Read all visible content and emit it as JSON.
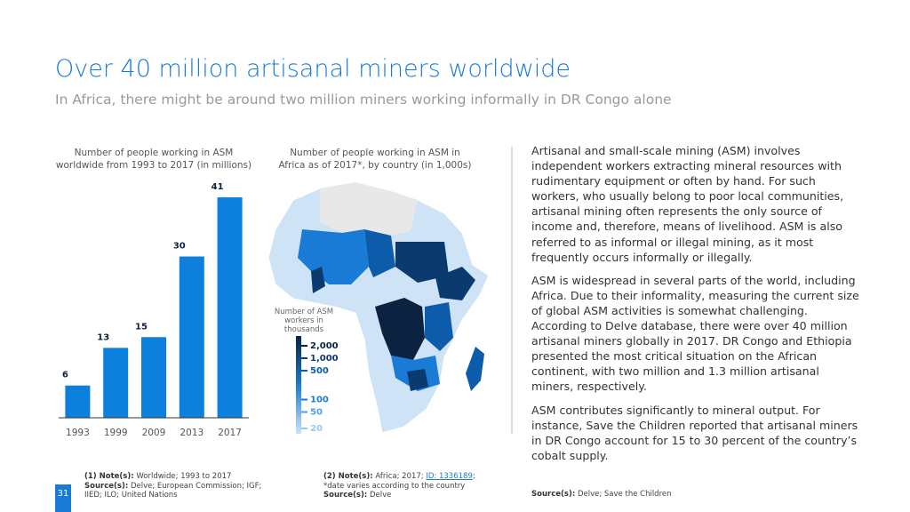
{
  "header": {
    "title": "Over 40 million artisanal miners worldwide",
    "subtitle": "In Africa, there might be around two million miners working informally in DR Congo alone"
  },
  "chart_data": {
    "type": "bar",
    "title": "Number of people working in ASM worldwide from 1993 to 2017 (in millions)",
    "categories": [
      "1993",
      "1999",
      "2009",
      "2013",
      "2017"
    ],
    "values": [
      6,
      13,
      15,
      30,
      41
    ],
    "color": "#0d7fdc"
  },
  "map": {
    "title": "Number of people working in ASM in Africa as of 2017*, by country (in 1,000s)",
    "legend_title": "Number of ASM workers in thousands",
    "legend_ticks": [
      {
        "value": 2000,
        "label": "2,000"
      },
      {
        "value": 1000,
        "label": "1,000"
      },
      500,
      100,
      50,
      20
    ]
  },
  "text": {
    "paragraphs": [
      "Artisanal and small-scale mining (ASM) involves independent workers extracting mineral resources with rudimentary equipment or often by hand. For such workers, who usually belong to poor local communities, artisanal mining often represents the only source of income and, therefore, means of livelihood. ASM is also referred to as informal or illegal mining, as it most frequently occurs informally or illegally.",
      "ASM is widespread in several parts of the world, including Africa. Due to their informality, measuring the current size of global ASM activities is somewhat challenging. According to Delve database, there were over 40 million artisanal miners globally in 2017. DR Congo and Ethiopia presented the most critical situation on the African continent, with two million and 1.3 million artisanal miners, respectively.",
      "ASM contributes significantly to mineral output. For instance, Save the Children reported that artisanal miners in DR Congo account for 15 to 30 percent of the country’s cobalt supply."
    ]
  },
  "footnotes": [
    {
      "note_label": "(1) Note(s):",
      "note": "Worldwide; 1993 to 2017",
      "source_label": "Source(s):",
      "source": "Delve; European Commission; IGF; IIED; ILO; United Nations"
    },
    {
      "note_label": "(2) Note(s):",
      "note": "Africa; 2017;",
      "link": "ID: 1336189",
      "note_end": "; *date varies according to the country",
      "source_label": "Source(s):",
      "source": "Delve"
    },
    {
      "source_label": "Source(s):",
      "source": "Delve; Save the Children"
    }
  ],
  "page_number": "31"
}
